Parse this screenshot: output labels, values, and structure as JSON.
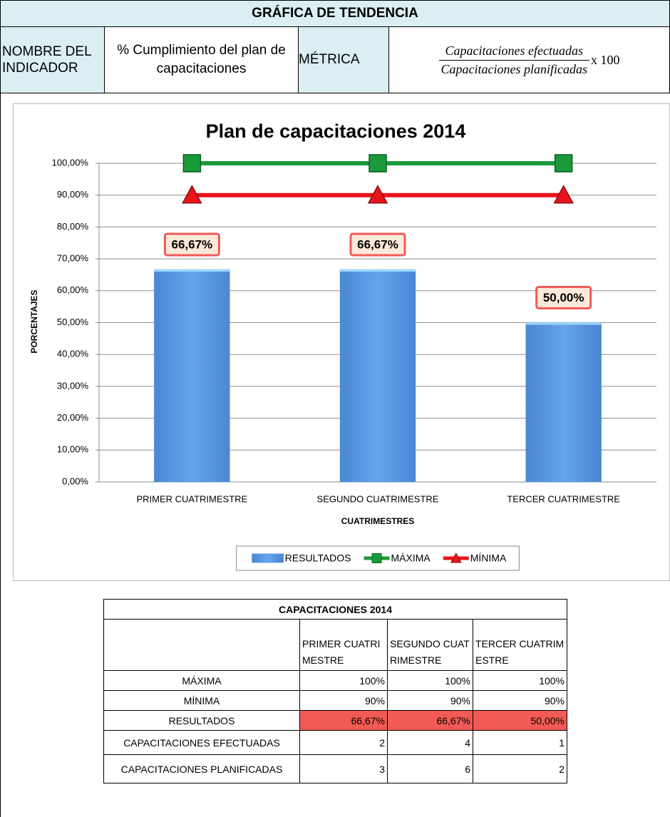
{
  "header": {
    "title": "GRÁFICA DE TENDENCIA",
    "indicator_label": "NOMBRE DEL INDICADOR",
    "indicator": "% Cumplimiento del plan de capacitaciones",
    "metric_label": "MÉTRICA",
    "metric": {
      "numerator": "Capacitaciones efectuadas",
      "denominator": "Capacitaciones planificadas",
      "factor": "x 100"
    }
  },
  "chart_data": {
    "type": "bar",
    "title": "Plan de capacitaciones 2014",
    "x_label": "CUATRIMESTRES",
    "y_label": "PORCENTAJES",
    "categories": [
      "PRIMER CUATRIMESTRE",
      "SEGUNDO CUATRIMESTRE",
      "TERCER CUATRIMESTRE"
    ],
    "series": [
      {
        "name": "RESULTADOS",
        "type": "bar",
        "color": "#5b9be0",
        "values": [
          66.67,
          66.67,
          50
        ],
        "value_labels": [
          "66,67%",
          "66,67%",
          "50,00%"
        ]
      },
      {
        "name": "MÁXIMA",
        "type": "line",
        "marker": "square",
        "color": "#1a9a3a",
        "values": [
          100,
          100,
          100
        ]
      },
      {
        "name": "MÍNIMA",
        "type": "line",
        "marker": "triangle",
        "color": "#e8141a",
        "values": [
          90,
          90,
          90
        ]
      }
    ],
    "ylim": [
      0,
      100
    ],
    "yticks": [
      {
        "value": 0,
        "label": "0,00%"
      },
      {
        "value": 10,
        "label": "10,00%"
      },
      {
        "value": 20,
        "label": "20,00%"
      },
      {
        "value": 30,
        "label": "30,00%"
      },
      {
        "value": 40,
        "label": "40,00%"
      },
      {
        "value": 50,
        "label": "50,00%"
      },
      {
        "value": 60,
        "label": "60,00%"
      },
      {
        "value": 70,
        "label": "70,00%"
      },
      {
        "value": 80,
        "label": "80,00%"
      },
      {
        "value": 90,
        "label": "90,00%"
      },
      {
        "value": 100,
        "label": "100,00%"
      }
    ],
    "grid": true,
    "legend": "bottom"
  },
  "table": {
    "title": "CAPACITACIONES 2014",
    "columns": [
      "PRIMER CUATRIMESTRE",
      "SEGUNDO CUATRIMESTRE",
      "TERCER CUATRIMESTRE"
    ],
    "rows": [
      [
        "MÁXIMA",
        "100%",
        "100%",
        "100%"
      ],
      [
        "MÍNIMA",
        "90%",
        "90%",
        "90%"
      ],
      [
        "RESULTADOS",
        "66,67%",
        "66,67%",
        "50,00%"
      ],
      [
        "CAPACITACIONES EFECTUADAS",
        "2",
        "4",
        "1"
      ],
      [
        "CAPACITACIONES PLANIFICADAS",
        "3",
        "6",
        "2"
      ]
    ]
  }
}
